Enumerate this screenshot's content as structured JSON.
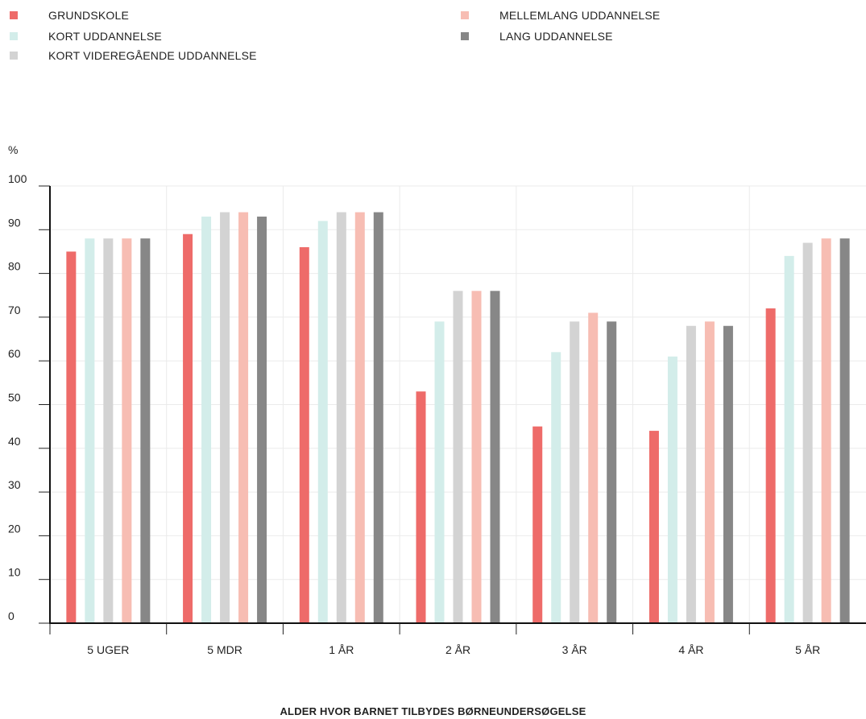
{
  "chart_data": {
    "type": "bar",
    "title": "",
    "ylabel": "%",
    "xlabel": "ALDER HVOR BARNET TILBYDES BØRNEUNDERSØGELSE",
    "ylim": [
      0,
      100
    ],
    "yticks": [
      0,
      10,
      20,
      30,
      40,
      50,
      60,
      70,
      80,
      90,
      100
    ],
    "grid": true,
    "legend_position": "top",
    "categories": [
      "5 UGER",
      "5 MDR",
      "1 ÅR",
      "2 ÅR",
      "3 ÅR",
      "4 ÅR",
      "5 ÅR"
    ],
    "series": [
      {
        "name": "GRUNDSKOLE",
        "color": "#EE6B69",
        "values": [
          85,
          89,
          86,
          53,
          45,
          44,
          72
        ]
      },
      {
        "name": "KORT UDDANNELSE",
        "color": "#D3EDEA",
        "values": [
          88,
          93,
          92,
          69,
          62,
          61,
          84
        ]
      },
      {
        "name": "KORT VIDEREGÅENDE UDDANNELSE",
        "color": "#D3D3D3",
        "values": [
          88,
          94,
          94,
          76,
          69,
          68,
          87
        ]
      },
      {
        "name": "MELLEMLANG UDDANNELSE",
        "color": "#F7BDB3",
        "values": [
          88,
          94,
          94,
          76,
          71,
          69,
          88
        ]
      },
      {
        "name": "LANG UDDANNELSE",
        "color": "#878787",
        "values": [
          88,
          93,
          94,
          76,
          69,
          68,
          88
        ]
      }
    ]
  }
}
